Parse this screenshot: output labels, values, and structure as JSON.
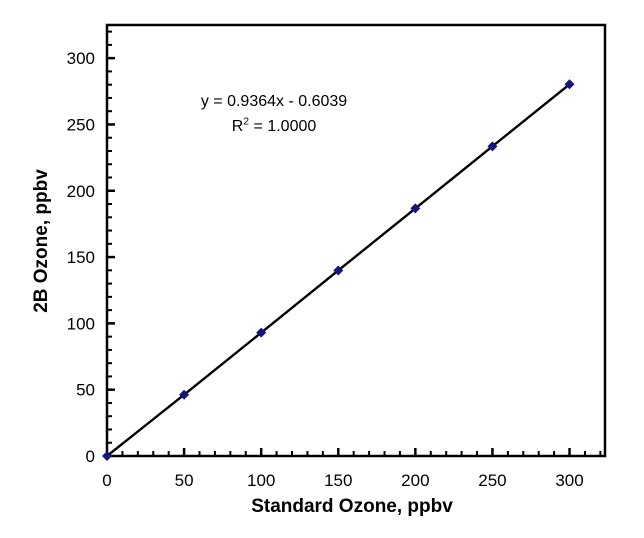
{
  "annotation": {
    "equation_line": "y = 0.9364x - 0.6039",
    "r2_prefix": "R",
    "r2_sup": "2",
    "r2_rest": " = 1.0000"
  },
  "chart_data": {
    "type": "scatter",
    "title": "",
    "xlabel": "Standard Ozone, ppbv",
    "ylabel": "2B Ozone, ppbv",
    "x": [
      0,
      50,
      100,
      150,
      200,
      250,
      300
    ],
    "y": [
      0,
      46.2,
      93.0,
      139.9,
      186.7,
      233.5,
      280.3
    ],
    "x_ticks": [
      0,
      50,
      100,
      150,
      200,
      250,
      300
    ],
    "y_ticks": [
      0,
      50,
      100,
      150,
      200,
      250,
      300
    ],
    "xlim": [
      0,
      323
    ],
    "ylim": [
      0,
      325
    ],
    "major_tick_step": 50,
    "minor_tick_step": 10,
    "grid": false,
    "legend": "none",
    "marker": {
      "shape": "diamond",
      "color": "#151580",
      "size": 5
    },
    "line_color": "#000000",
    "axis_color": "#000000",
    "tick_label_color": "#000000",
    "trendline": {
      "slope": 0.9364,
      "intercept": -0.6039,
      "equation": "y = 0.9364x - 0.6039",
      "r_squared": "1.0000"
    }
  }
}
